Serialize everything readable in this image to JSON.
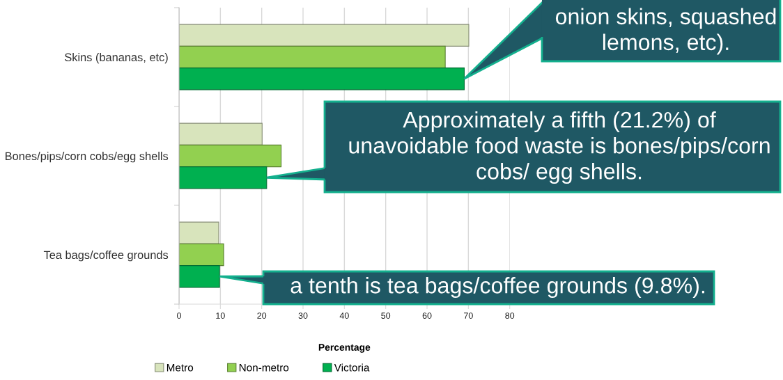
{
  "chart_data": {
    "type": "bar",
    "orientation": "horizontal",
    "categories": [
      "Skins (bananas, etc)",
      "Bones/pips/corn cobs/egg shells",
      "Tea bags/coffee grounds"
    ],
    "series": [
      {
        "name": "Metro",
        "color": "#d8e4bc",
        "values": [
          70.1,
          20.1,
          9.6
        ]
      },
      {
        "name": "Non-metro",
        "color": "#92d050",
        "values": [
          64.4,
          24.7,
          10.8
        ]
      },
      {
        "name": "Victoria",
        "color": "#00b050",
        "values": [
          69.0,
          21.2,
          9.8
        ]
      }
    ],
    "xlabel": "Percentage",
    "xlim": [
      0,
      80
    ],
    "xticks": [
      0,
      10,
      20,
      30,
      40,
      50,
      60,
      70,
      80
    ],
    "grid": "x",
    "legend": "bottom",
    "annotations": [
      "onion skins, squashed\nlemons, etc).",
      "Approximately a fifth (21.2%) of\nunavoidable food waste is bones/pips/corn\ncobs/ egg shells.",
      "a tenth is tea bags/coffee grounds (9.8%)."
    ]
  }
}
